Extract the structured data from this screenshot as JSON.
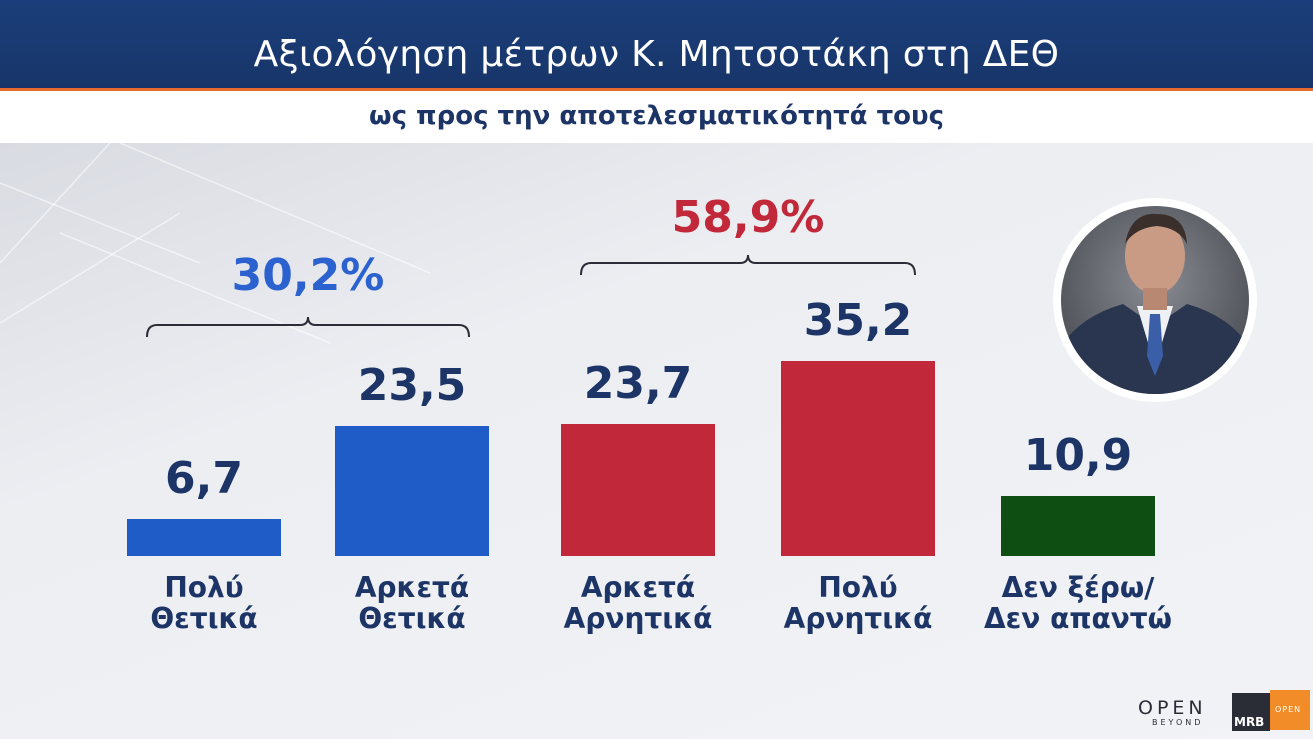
{
  "header": {
    "title": "Αξιολόγηση μέτρων Κ. Μητσοτάκη στη ΔΕΘ",
    "subtitle": "ως προς την αποτελεσματικότητά τους"
  },
  "chart_data": {
    "type": "bar",
    "title": "Αξιολόγηση μέτρων Κ. Μητσοτάκη στη ΔΕΘ",
    "subtitle": "ως προς την αποτελεσματικότητά τους",
    "categories": [
      [
        "Πολύ",
        "Θετικά"
      ],
      [
        "Αρκετά",
        "Θετικά"
      ],
      [
        "Αρκετά",
        "Αρνητικά"
      ],
      [
        "Πολύ",
        "Αρνητικά"
      ],
      [
        "Δεν ξέρω/",
        "Δεν απαντώ"
      ]
    ],
    "values": [
      6.7,
      23.5,
      23.7,
      35.2,
      10.9
    ],
    "value_labels": [
      "6,7",
      "23,5",
      "23,7",
      "35,2",
      "10,9"
    ],
    "bar_colors": [
      "#1f5cc8",
      "#1f5cc8",
      "#c1283a",
      "#c1283a",
      "#0f4e12"
    ],
    "groups": [
      {
        "label": "30,2%",
        "value": 30.2,
        "spans": [
          0,
          1
        ],
        "color": "#2b62cf"
      },
      {
        "label": "58,9%",
        "value": 58.9,
        "spans": [
          2,
          3
        ],
        "color": "#c1283a"
      }
    ],
    "ylim": [
      0,
      40
    ],
    "grid": false,
    "xlabel": "",
    "ylabel": ""
  },
  "logos": {
    "open": "OPEN",
    "open_tagline": "BEYOND",
    "mrb": "MRB",
    "corner": "OPEN"
  },
  "colors": {
    "header_bg": "#1b3e7a",
    "accent_line": "#e46a2e",
    "text_dark": "#1c3566"
  }
}
